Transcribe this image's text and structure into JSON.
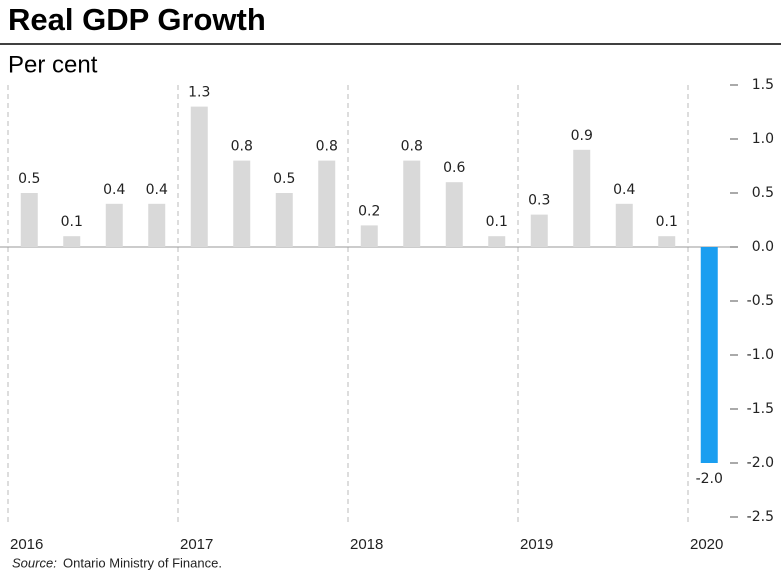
{
  "title": "Real GDP Growth",
  "source_label": "Source:",
  "source": "Ontario Ministry of Finance.",
  "chart_data": {
    "type": "bar",
    "subtitle": "Per cent",
    "categories": [
      "2016",
      null,
      null,
      null,
      "2017",
      null,
      null,
      null,
      "2018",
      null,
      null,
      null,
      "2019",
      null,
      null,
      null,
      "2020"
    ],
    "values": [
      0.5,
      0.1,
      0.4,
      0.4,
      1.3,
      0.8,
      0.5,
      0.8,
      0.2,
      0.8,
      0.6,
      0.1,
      0.3,
      0.9,
      0.4,
      0.1,
      -2.0
    ],
    "value_labels": [
      "0.5",
      "0.1",
      "0.4",
      "0.4",
      "1.3",
      "0.8",
      "0.5",
      "0.8",
      "0.2",
      "0.8",
      "0.6",
      "0.1",
      "0.3",
      "0.9",
      "0.4",
      "0.1",
      "-2.0"
    ],
    "colors": [
      "#d9d9d9",
      "#d9d9d9",
      "#d9d9d9",
      "#d9d9d9",
      "#d9d9d9",
      "#d9d9d9",
      "#d9d9d9",
      "#d9d9d9",
      "#d9d9d9",
      "#d9d9d9",
      "#d9d9d9",
      "#d9d9d9",
      "#d9d9d9",
      "#d9d9d9",
      "#d9d9d9",
      "#d9d9d9",
      "#1a9ef0"
    ],
    "ylim": [
      -2.5,
      1.5
    ],
    "yticks": [
      1.5,
      {
        "value": 1,
        "label": "1.0"
      },
      0.5,
      {
        "value": 0,
        "label": "0.0"
      },
      -0.5,
      {
        "value": -1,
        "label": "-1.0"
      },
      -1.5,
      {
        "value": -2,
        "label": "-2.0"
      },
      -2.5
    ],
    "y_axis_side": "right"
  }
}
